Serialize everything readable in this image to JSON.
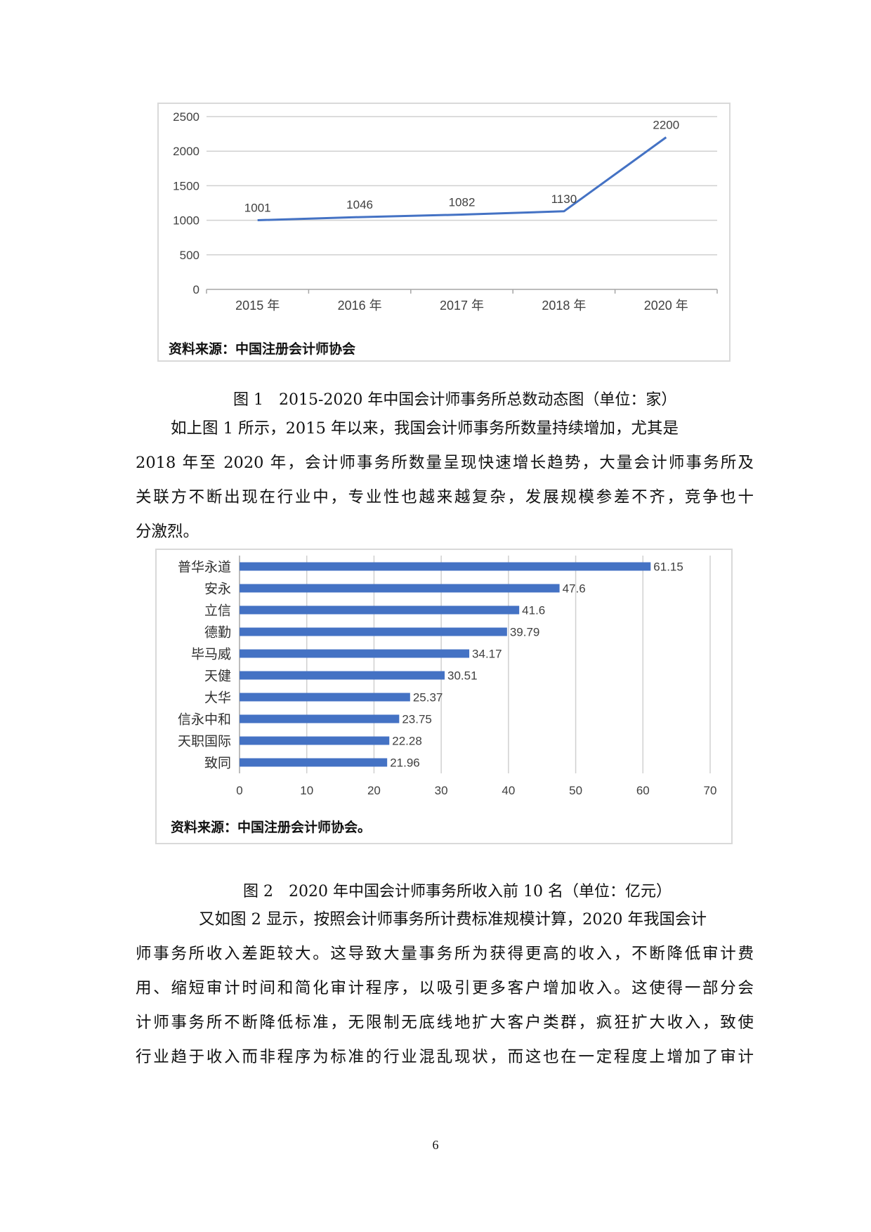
{
  "chart_data": [
    {
      "type": "line",
      "title": "",
      "categories": [
        "2015 年",
        "2016 年",
        "2017 年",
        "2018 年",
        "2020 年"
      ],
      "values": [
        1001,
        1046,
        1082,
        1130,
        2200
      ],
      "data_labels": [
        "1001",
        "1046",
        "1082",
        "1130",
        "2200"
      ],
      "ylim": [
        0,
        2500
      ],
      "yticks": [
        0,
        500,
        1000,
        1500,
        2000,
        2500
      ],
      "grid": true,
      "legend": "none",
      "color": "#4472c4",
      "source": "资料来源：中国注册会计师协会"
    },
    {
      "type": "bar",
      "orientation": "horizontal",
      "title": "",
      "categories": [
        "普华永道",
        "安永",
        "立信",
        "德勤",
        "毕马威",
        "天健",
        "大华",
        "信永中和",
        "天职国际",
        "致同"
      ],
      "values": [
        61.15,
        47.6,
        41.6,
        39.79,
        34.17,
        30.51,
        25.37,
        23.75,
        22.28,
        21.96
      ],
      "data_labels": [
        "61.15",
        "47.6",
        "41.6",
        "39.79",
        "34.17",
        "30.51",
        "25.37",
        "23.75",
        "22.28",
        "21.96"
      ],
      "xlim": [
        0,
        70
      ],
      "xticks": [
        0,
        10,
        20,
        30,
        40,
        50,
        60,
        70
      ],
      "grid": true,
      "legend": "none",
      "color": "#4472c4",
      "source": "资料来源：中国注册会计师协会。"
    }
  ],
  "figures": {
    "fig1_caption": "图 1　2015-2020 年中国会计师事务所总数动态图（单位：家）",
    "fig2_caption": "图 2　2020 年中国会计师事务所收入前 10 名（单位：亿元）"
  },
  "paragraphs": {
    "para1": [
      "如上图 1 所示，2015 年以来，我国会计师事务所数量持续增加，尤其是",
      "2018 年至 2020 年，会计师事务所数量呈现快速增长趋势，大量会计师事务所及",
      "关联方不断出现在行业中，专业性也越来越复杂，发展规模参差不齐，竞争也十",
      "分激烈。"
    ],
    "para2": [
      "又如图 2 显示，按照会计师事务所计费标准规模计算，2020 年我国会计",
      "师事务所收入差距较大。这导致大量事务所为获得更高的收入，不断降低审计费",
      "用、缩短审计时间和简化审计程序，以吸引更多客户增加收入。这使得一部分会",
      "计师事务所不断降低标准，无限制无底线地扩大客户类群，疯狂扩大收入，致使",
      "行业趋于收入而非程序为标准的行业混乱现状，而这也在一定程度上增加了审计"
    ]
  },
  "page_number": "6"
}
